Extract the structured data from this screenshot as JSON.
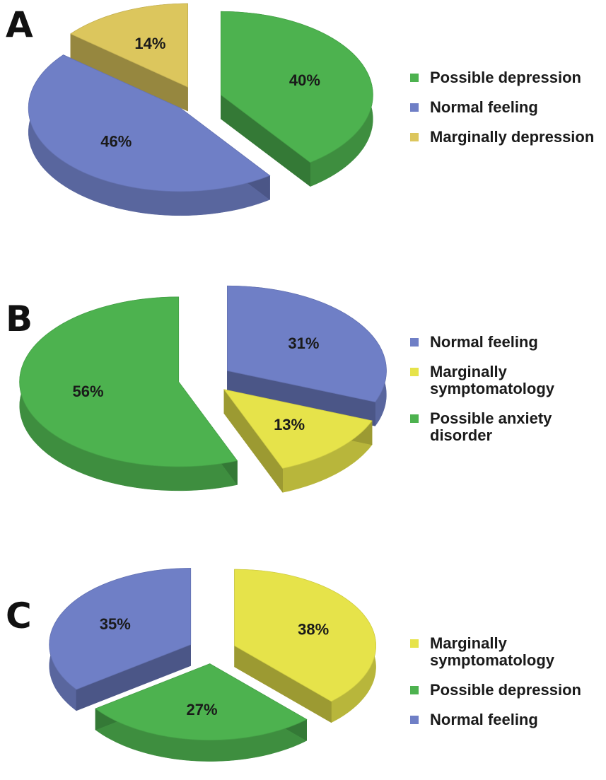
{
  "colors": {
    "green": "#4db24f",
    "blue": "#6f7fc6",
    "yellow": "#e6e34a",
    "gold": "#dcc65d",
    "green_dark": "#3e9a44",
    "blue_dark": "#5867b0"
  },
  "chart_data": [
    {
      "type": "pie",
      "panel_label": "A",
      "slices": [
        {
          "name": "Possible depression",
          "value": 40,
          "label": "40%",
          "color": "#4db24f"
        },
        {
          "name": "Normal feeling",
          "value": 46,
          "label": "46%",
          "color": "#6f7fc6"
        },
        {
          "name": "Marginally depression",
          "value": 14,
          "label": "14%",
          "color": "#dcc65d"
        }
      ],
      "legend": [
        "Possible depression",
        "Normal feeling",
        "Marginally depression"
      ],
      "legend_placement": "right",
      "style": "3d-exploded"
    },
    {
      "type": "pie",
      "panel_label": "B",
      "slices": [
        {
          "name": "Normal feeling",
          "value": 31,
          "label": "31%",
          "color": "#6f7fc6"
        },
        {
          "name": "Marginally symptomatology",
          "value": 13,
          "label": "13%",
          "color": "#e6e34a"
        },
        {
          "name": "Possible anxiety disorder",
          "value": 56,
          "label": "56%",
          "color": "#4db24f"
        }
      ],
      "legend": [
        "Normal feeling",
        "Marginally symptomatology",
        "Possible anxiety disorder"
      ],
      "legend_placement": "right",
      "style": "3d-exploded"
    },
    {
      "type": "pie",
      "panel_label": "C",
      "slices": [
        {
          "name": "Marginally symptomatology",
          "value": 38,
          "label": "38%",
          "color": "#e6e34a"
        },
        {
          "name": "Possible depression",
          "value": 27,
          "label": "27%",
          "color": "#4db24f"
        },
        {
          "name": "Normal feeling",
          "value": 35,
          "label": "35%",
          "color": "#6f7fc6"
        }
      ],
      "legend": [
        "Marginally symptomatology",
        "Possible depression",
        "Normal feeling"
      ],
      "legend_placement": "right",
      "style": "3d-exploded"
    }
  ]
}
